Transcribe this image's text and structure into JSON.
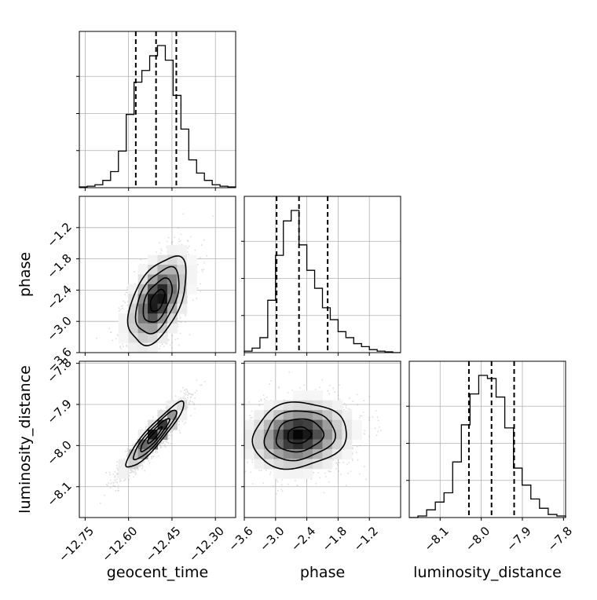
{
  "chart_data": {
    "type": "corner",
    "parameters": [
      "geocent_time",
      "phase",
      "luminosity_distance"
    ],
    "axis_labels": {
      "geocent_time": "geocent_time",
      "phase": "phase",
      "luminosity_distance": "luminosity_distance"
    },
    "ranges": {
      "geocent_time": [
        -12.77,
        -12.23
      ],
      "phase": [
        -3.6,
        -0.6
      ],
      "luminosity_distance": [
        -8.175,
        -7.795
      ]
    },
    "ticks": {
      "geocent_time": {
        "values": [
          -12.75,
          -12.6,
          -12.45,
          -12.3
        ],
        "labels": [
          "−12.75",
          "−12.60",
          "−12.45",
          "−12.30"
        ]
      },
      "phase": {
        "values": [
          -3.6,
          -3.0,
          -2.4,
          -1.8,
          -1.2
        ],
        "labels": [
          "−3.6",
          "−3.0",
          "−2.4",
          "−1.8",
          "−1.2"
        ]
      },
      "luminosity_distance": {
        "values": [
          -8.1,
          -8.0,
          -7.9,
          -7.8
        ],
        "labels": [
          "−8.1",
          "−8.0",
          "−7.9",
          "−7.8"
        ]
      }
    },
    "histograms": {
      "geocent_time": {
        "counts": [
          0.005,
          0.01,
          0.02,
          0.05,
          0.11,
          0.25,
          0.5,
          0.72,
          0.8,
          0.9,
          0.97,
          0.87,
          0.63,
          0.4,
          0.19,
          0.1,
          0.05,
          0.02,
          0.01,
          0.005
        ],
        "quantiles": [
          -12.575,
          -12.505,
          -12.435
        ]
      },
      "phase": {
        "counts": [
          0.01,
          0.03,
          0.1,
          0.35,
          0.65,
          0.88,
          0.95,
          0.72,
          0.55,
          0.43,
          0.3,
          0.22,
          0.14,
          0.1,
          0.06,
          0.04,
          0.02,
          0.01,
          0.005,
          0.0
        ],
        "quantiles": [
          -2.98,
          -2.55,
          -2.0
        ]
      },
      "luminosity_distance": {
        "counts": [
          0.0,
          0.01,
          0.05,
          0.1,
          0.16,
          0.36,
          0.6,
          0.8,
          0.92,
          0.9,
          0.78,
          0.58,
          0.32,
          0.21,
          0.12,
          0.06,
          0.02,
          0.01
        ],
        "quantiles": [
          -8.03,
          -7.975,
          -7.92
        ]
      }
    },
    "pairs": [
      {
        "x": "geocent_time",
        "y": "phase",
        "center": [
          -12.5,
          -2.6
        ],
        "sigma": [
          0.05,
          0.42
        ],
        "correlation": 0.5
      },
      {
        "x": "geocent_time",
        "y": "luminosity_distance",
        "center": [
          -12.51,
          -7.975
        ],
        "sigma": [
          0.05,
          0.04
        ],
        "correlation": 0.92
      },
      {
        "x": "phase",
        "y": "luminosity_distance",
        "center": [
          -2.55,
          -7.975
        ],
        "sigma": [
          0.45,
          0.04
        ],
        "correlation": 0.12
      }
    ],
    "grid": true,
    "density_levels": [
      "0.5σ",
      "1σ",
      "1.5σ",
      "2σ"
    ]
  }
}
